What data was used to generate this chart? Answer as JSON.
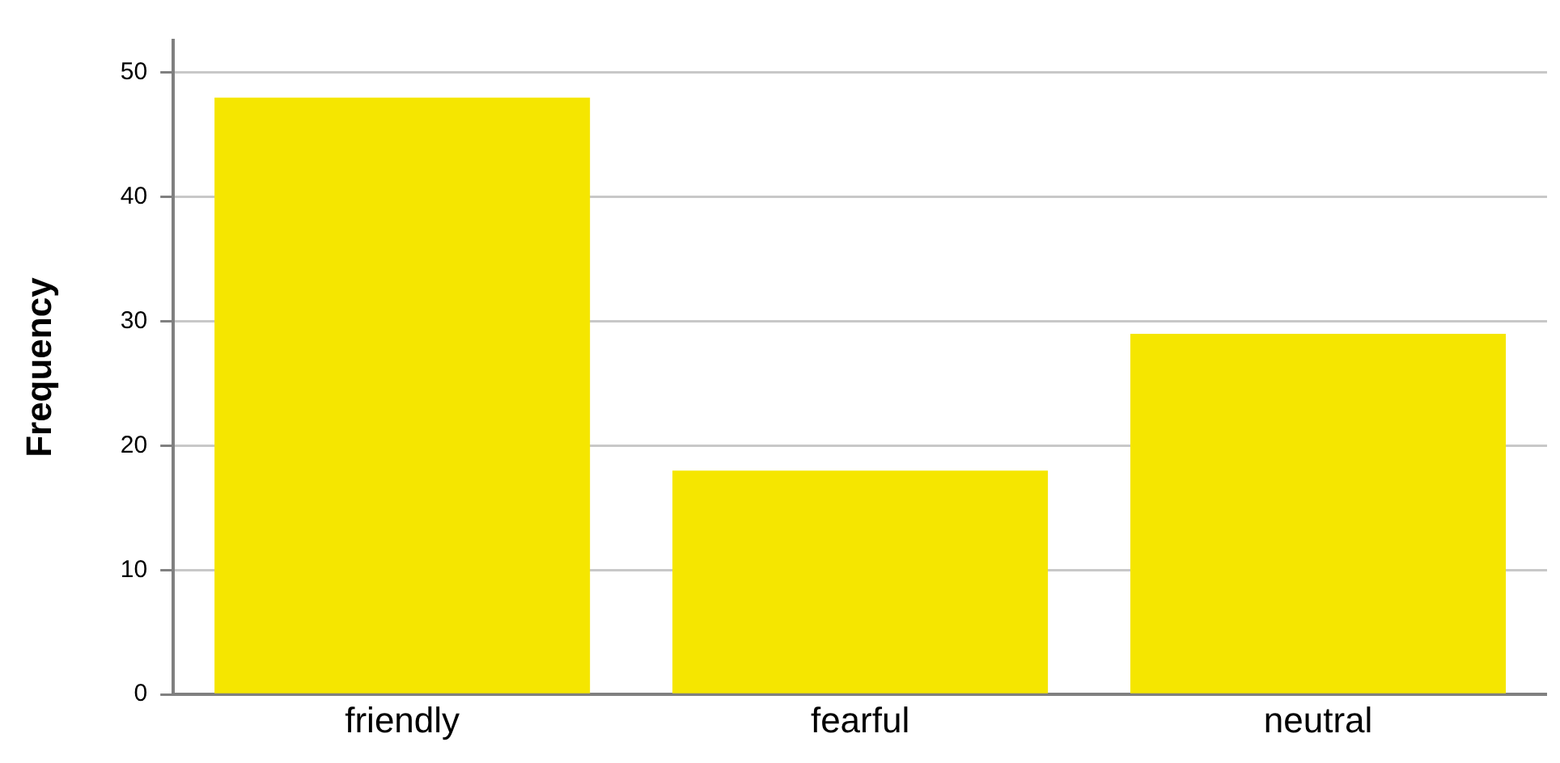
{
  "chart_data": {
    "type": "bar",
    "ylabel": "Frequency",
    "categories": [
      "friendly",
      "fearful",
      "neutral"
    ],
    "values": [
      48,
      18,
      29
    ],
    "color": "#f5e600",
    "ylim": [
      0,
      52.6
    ],
    "yticks": [
      0,
      10,
      20,
      30,
      40,
      50
    ],
    "grid": "y",
    "legend": false
  }
}
